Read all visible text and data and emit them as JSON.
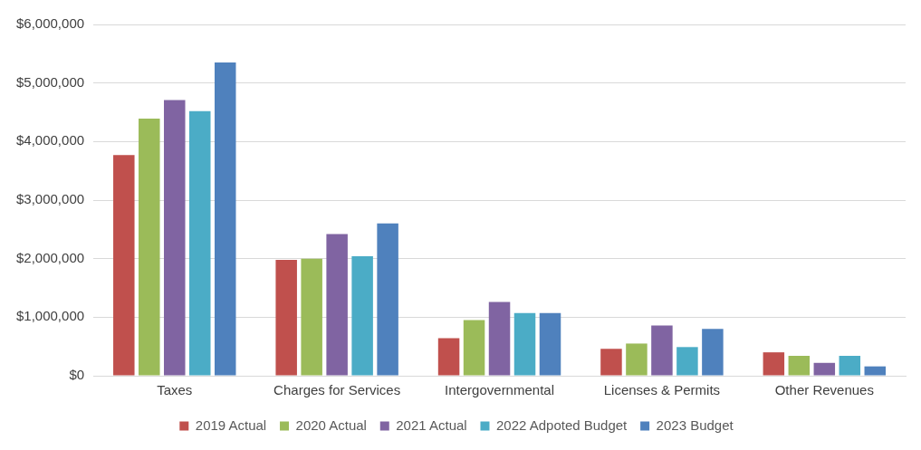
{
  "chart_data": {
    "type": "bar",
    "categories": [
      "Taxes",
      "Charges for Services",
      "Intergovernmental",
      "Licenses & Permits",
      "Other Revenues"
    ],
    "series": [
      {
        "name": "2019 Actual",
        "color": "#c0504d",
        "values": [
          3770000,
          1980000,
          640000,
          460000,
          400000
        ]
      },
      {
        "name": "2020 Actual",
        "color": "#9bbb59",
        "values": [
          4390000,
          2000000,
          950000,
          550000,
          340000
        ]
      },
      {
        "name": "2021 Actual",
        "color": "#8064a2",
        "values": [
          4710000,
          2420000,
          1260000,
          860000,
          220000
        ]
      },
      {
        "name": "2022 Adpoted Budget",
        "color": "#4bacc6",
        "values": [
          4520000,
          2040000,
          1070000,
          490000,
          340000
        ]
      },
      {
        "name": "2023 Budget",
        "color": "#4f81bd",
        "values": [
          5350000,
          2600000,
          1070000,
          800000,
          160000
        ]
      }
    ],
    "ylim": [
      0,
      6000000
    ],
    "yticks": [
      {
        "value": 0,
        "label": "$0"
      },
      {
        "value": 1000000,
        "label": "$1,000,000"
      },
      {
        "value": 2000000,
        "label": "$2,000,000"
      },
      {
        "value": 3000000,
        "label": "$3,000,000"
      },
      {
        "value": 4000000,
        "label": "$4,000,000"
      },
      {
        "value": 5000000,
        "label": "$5,000,000"
      },
      {
        "value": 6000000,
        "label": "$6,000,000"
      }
    ],
    "grid": "y",
    "legend": "bottom"
  }
}
